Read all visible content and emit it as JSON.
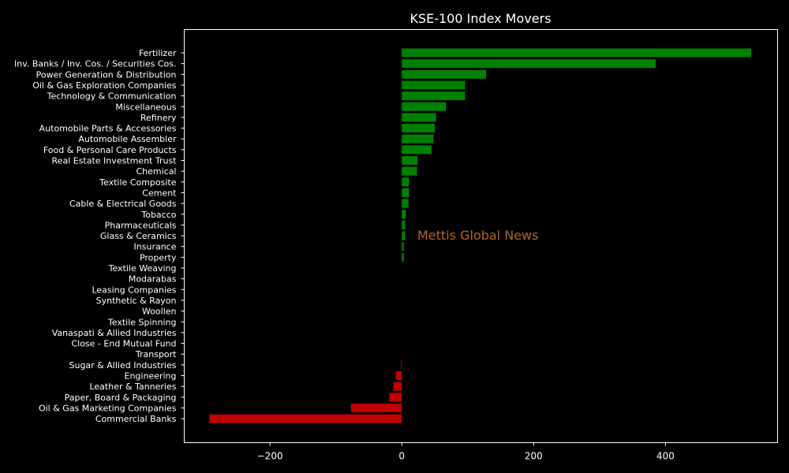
{
  "chart_data": {
    "type": "bar",
    "orientation": "horizontal",
    "title": "KSE-100 Index Movers",
    "xlabel": "",
    "ylabel": "",
    "xlim": [
      -330,
      570
    ],
    "xticks": [
      -200,
      0,
      200,
      400
    ],
    "xtick_labels": [
      "−200",
      "0",
      "200",
      "400"
    ],
    "grid": false,
    "watermark": "Mettis Global News",
    "colors": {
      "background": "#000000",
      "positive": "#008000",
      "negative": "#c00000",
      "text": "#ffffff",
      "watermark": "#b5651d"
    },
    "categories": [
      "Fertilizer",
      "Inv. Banks / Inv. Cos. / Securities Cos.",
      "Power Generation & Distribution",
      "Oil & Gas Exploration Companies",
      "Technology & Communication",
      "Miscellaneous",
      "Refinery",
      "Automobile Parts & Accessories",
      "Automobile Assembler",
      "Food & Personal Care Products",
      "Real Estate Investment Trust",
      "Chemical",
      "Textile Composite",
      "Cement",
      "Cable & Electrical Goods",
      "Tobacco",
      "Pharmaceuticals",
      "Glass & Ceramics",
      "Insurance",
      "Property",
      "Textile Weaving",
      "Modarabas",
      "Leasing Companies",
      "Synthetic & Rayon",
      "Woollen",
      "Textile Spinning",
      "Vanaspati & Allied Industries",
      "Close - End Mutual Fund",
      "Transport",
      "Sugar & Allied Industries",
      "Engineering",
      "Leather & Tanneries",
      "Paper, Board & Packaging",
      "Oil & Gas Marketing Companies",
      "Commercial Banks"
    ],
    "values": [
      530,
      385,
      128,
      96,
      96,
      67,
      52,
      50,
      48,
      45,
      24,
      23,
      11,
      11,
      10,
      6,
      5,
      5,
      3,
      3,
      0,
      0,
      0,
      0,
      0,
      0,
      0,
      0,
      0,
      -1,
      -9,
      -13,
      -19,
      -77,
      -292
    ]
  }
}
